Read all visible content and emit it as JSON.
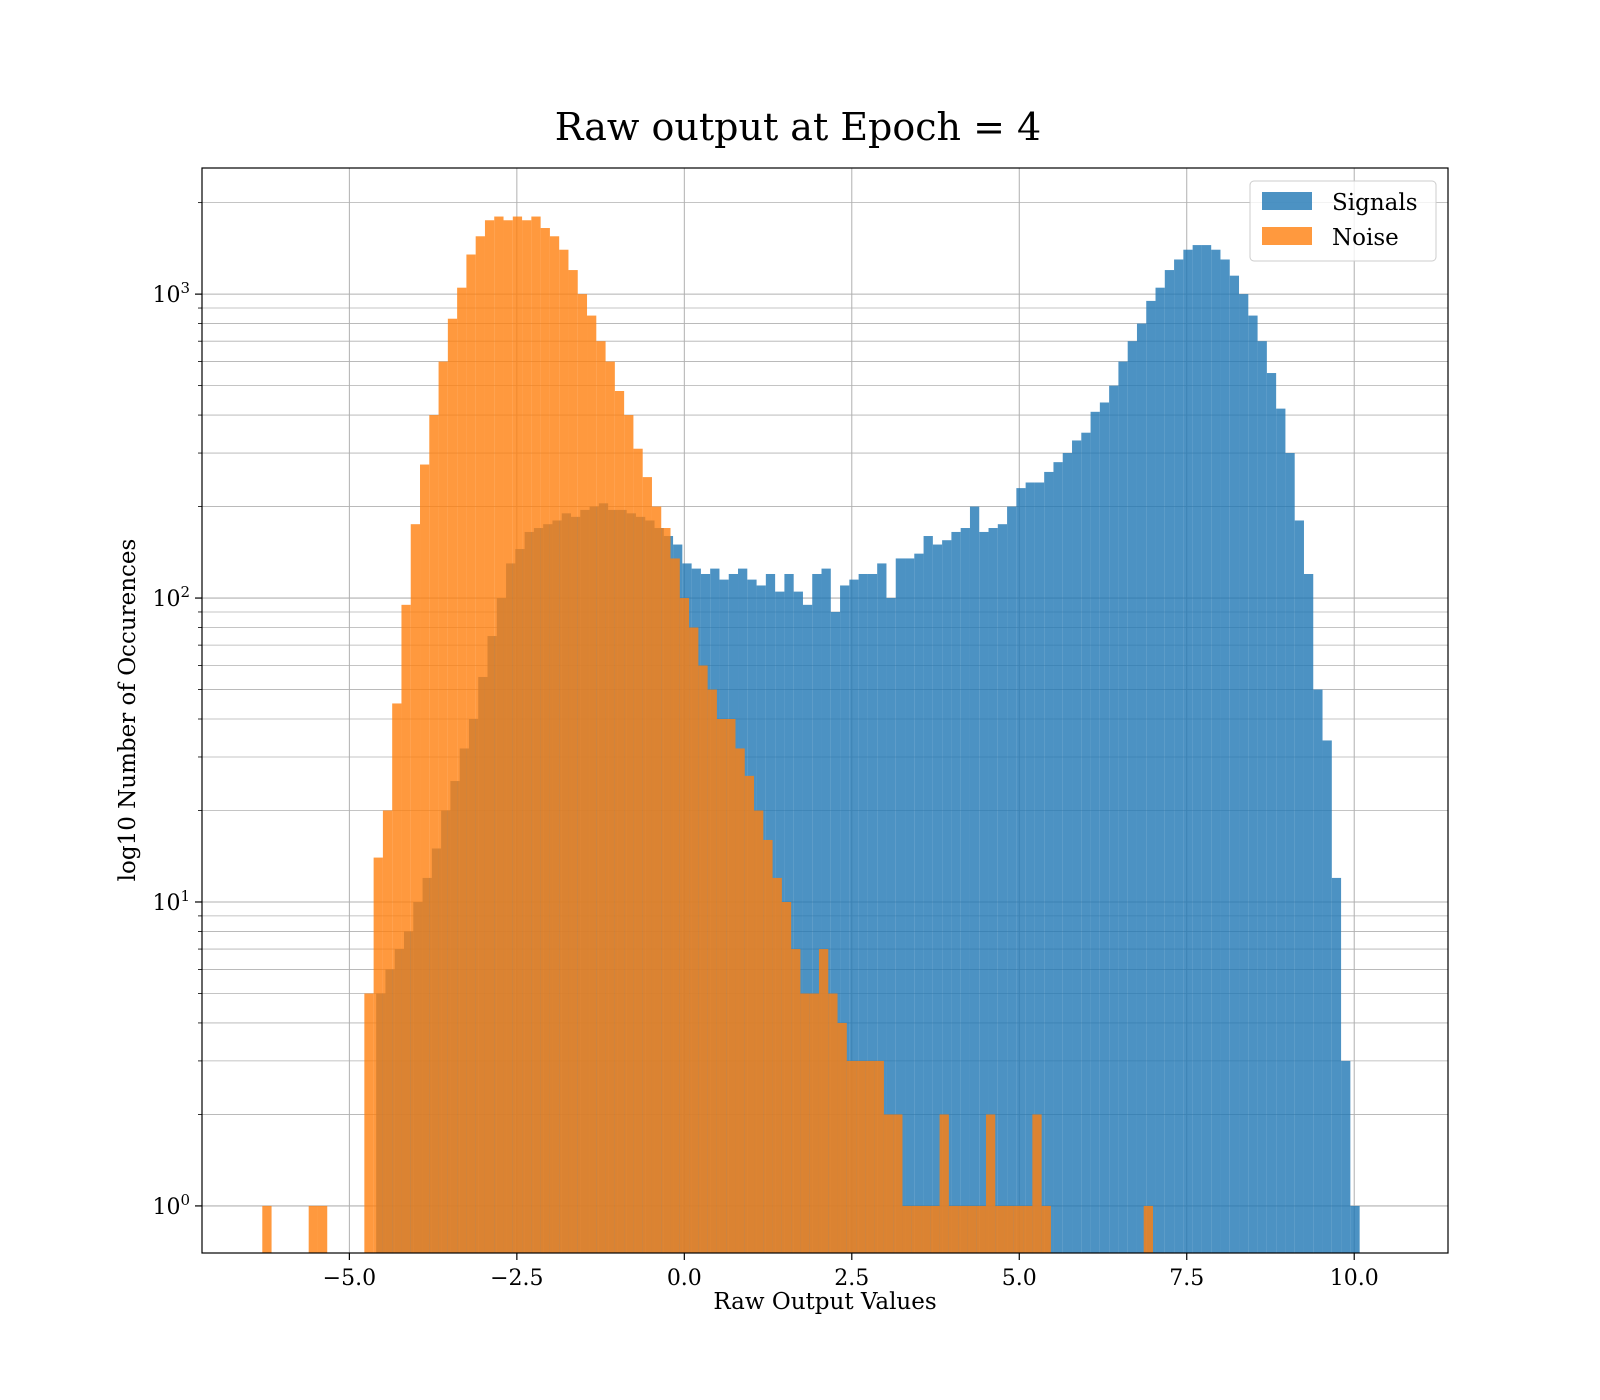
{
  "chart_data": {
    "type": "histogram",
    "title": "Raw output at Epoch = 4",
    "xlabel": "Raw Output Values",
    "ylabel": "log10 Number of Occurences",
    "yscale": "log",
    "xlim": [
      -7.2,
      11.4
    ],
    "ylim": [
      0.7,
      2600
    ],
    "xticks": [
      {
        "value": -5.0,
        "label": "−5.0"
      },
      {
        "value": -2.5,
        "label": "−2.5"
      },
      {
        "value": 0.0,
        "label": "0.0"
      },
      {
        "value": 2.5,
        "label": "2.5"
      },
      {
        "value": 5.0,
        "label": "5.0"
      },
      {
        "value": 7.5,
        "label": "7.5"
      },
      {
        "value": 10.0,
        "label": "10.0"
      }
    ],
    "yticks": [
      {
        "value": 1,
        "base": "10",
        "exp": "0"
      },
      {
        "value": 10,
        "base": "10",
        "exp": "1"
      },
      {
        "value": 100,
        "base": "10",
        "exp": "2"
      },
      {
        "value": 1000,
        "base": "10",
        "exp": "3"
      }
    ],
    "grid": true,
    "legend_position": "top-right",
    "series": [
      {
        "name": "Signals",
        "color": "#1f77b4",
        "alpha": 0.8,
        "bin_start": -4.6,
        "bin_width": 0.1385,
        "counts": [
          5,
          6,
          7,
          8,
          10,
          12,
          15,
          20,
          25,
          32,
          40,
          55,
          75,
          100,
          130,
          145,
          165,
          170,
          175,
          180,
          190,
          185,
          195,
          200,
          205,
          195,
          195,
          190,
          185,
          180,
          170,
          160,
          150,
          130,
          125,
          120,
          125,
          115,
          120,
          125,
          115,
          110,
          120,
          105,
          120,
          105,
          95,
          120,
          125,
          90,
          110,
          115,
          120,
          120,
          130,
          100,
          135,
          135,
          140,
          160,
          150,
          155,
          165,
          170,
          200,
          165,
          170,
          175,
          200,
          230,
          240,
          240,
          260,
          280,
          300,
          330,
          350,
          410,
          440,
          500,
          600,
          700,
          800,
          950,
          1050,
          1200,
          1300,
          1400,
          1450,
          1450,
          1400,
          1300,
          1150,
          1000,
          850,
          700,
          550,
          420,
          300,
          180,
          120,
          50,
          34,
          12,
          3,
          1
        ]
      },
      {
        "name": "Noise",
        "color": "#ff7f0e",
        "alpha": 0.8,
        "bin_start": -6.3,
        "bin_width": 0.1385,
        "counts": [
          1,
          0,
          0,
          0,
          0,
          1,
          1,
          0,
          0,
          0,
          0,
          5,
          14,
          20,
          45,
          95,
          175,
          275,
          400,
          600,
          830,
          1050,
          1350,
          1550,
          1750,
          1800,
          1750,
          1800,
          1750,
          1800,
          1650,
          1550,
          1400,
          1200,
          1000,
          850,
          700,
          600,
          480,
          400,
          310,
          250,
          200,
          170,
          135,
          100,
          80,
          60,
          50,
          40,
          40,
          32,
          26,
          20,
          16,
          12,
          10,
          7,
          5,
          5,
          7,
          5,
          4,
          3,
          3,
          3,
          3,
          2,
          2,
          1,
          1,
          1,
          1,
          2,
          1,
          1,
          1,
          1,
          2,
          1,
          1,
          1,
          1,
          2,
          1,
          0,
          0,
          0,
          0,
          0,
          0,
          0,
          0,
          0,
          0,
          1
        ]
      }
    ]
  }
}
